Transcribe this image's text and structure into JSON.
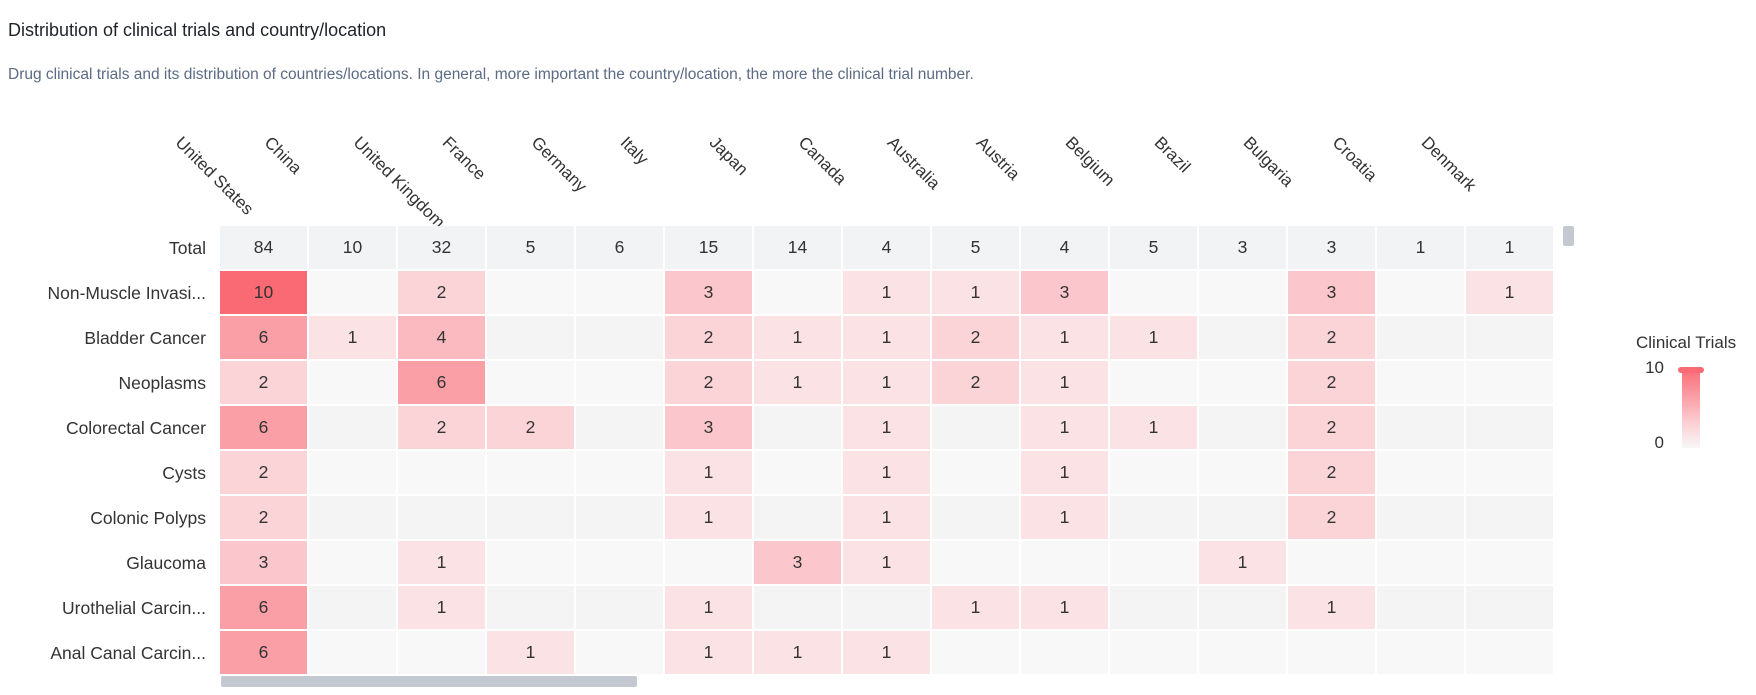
{
  "header": {
    "title": "Distribution of clinical trials and country/location",
    "subtitle": "Drug clinical trials and its distribution of countries/locations. In general, more important the country/location, the more the clinical trial number."
  },
  "legend": {
    "title": "Clinical Trials",
    "max": "10",
    "min": "0"
  },
  "colors": {
    "high": "#fa6a74",
    "low": "#fbeff1",
    "empty": "#f7f7f8",
    "total": "#f2f3f5"
  },
  "chart_data": {
    "type": "heatmap",
    "columns": [
      "United States",
      "China",
      "United Kingdom",
      "France",
      "Germany",
      "Italy",
      "Japan",
      "Canada",
      "Australia",
      "Austria",
      "Belgium",
      "Brazil",
      "Bulgaria",
      "Croatia",
      "Denmark"
    ],
    "rows": [
      "Total",
      "Non-Muscle Invasi...",
      "Bladder Cancer",
      "Neoplasms",
      "Colorectal Cancer",
      "Cysts",
      "Colonic Polyps",
      "Glaucoma",
      "Urothelial Carcin...",
      "Anal Canal Carcin..."
    ],
    "values": [
      [
        84,
        10,
        32,
        5,
        6,
        15,
        14,
        4,
        5,
        4,
        5,
        3,
        3,
        1,
        1
      ],
      [
        10,
        null,
        2,
        null,
        null,
        3,
        null,
        1,
        1,
        3,
        null,
        null,
        3,
        null,
        1
      ],
      [
        6,
        1,
        4,
        null,
        null,
        2,
        1,
        1,
        2,
        1,
        1,
        null,
        2,
        null,
        null
      ],
      [
        2,
        null,
        6,
        null,
        null,
        2,
        1,
        1,
        2,
        1,
        null,
        null,
        2,
        null,
        null
      ],
      [
        6,
        null,
        2,
        2,
        null,
        3,
        null,
        1,
        null,
        1,
        1,
        null,
        2,
        null,
        null
      ],
      [
        2,
        null,
        null,
        null,
        null,
        1,
        null,
        1,
        null,
        1,
        null,
        null,
        2,
        null,
        null
      ],
      [
        2,
        null,
        null,
        null,
        null,
        1,
        null,
        1,
        null,
        1,
        null,
        null,
        2,
        null,
        null
      ],
      [
        3,
        null,
        1,
        null,
        null,
        null,
        3,
        1,
        null,
        null,
        null,
        1,
        null,
        null,
        null
      ],
      [
        6,
        null,
        1,
        null,
        null,
        1,
        null,
        null,
        1,
        1,
        null,
        null,
        1,
        null,
        null
      ],
      [
        6,
        null,
        null,
        1,
        null,
        1,
        1,
        1,
        null,
        null,
        null,
        null,
        null,
        null,
        null
      ]
    ],
    "color_range": [
      0,
      10
    ]
  }
}
